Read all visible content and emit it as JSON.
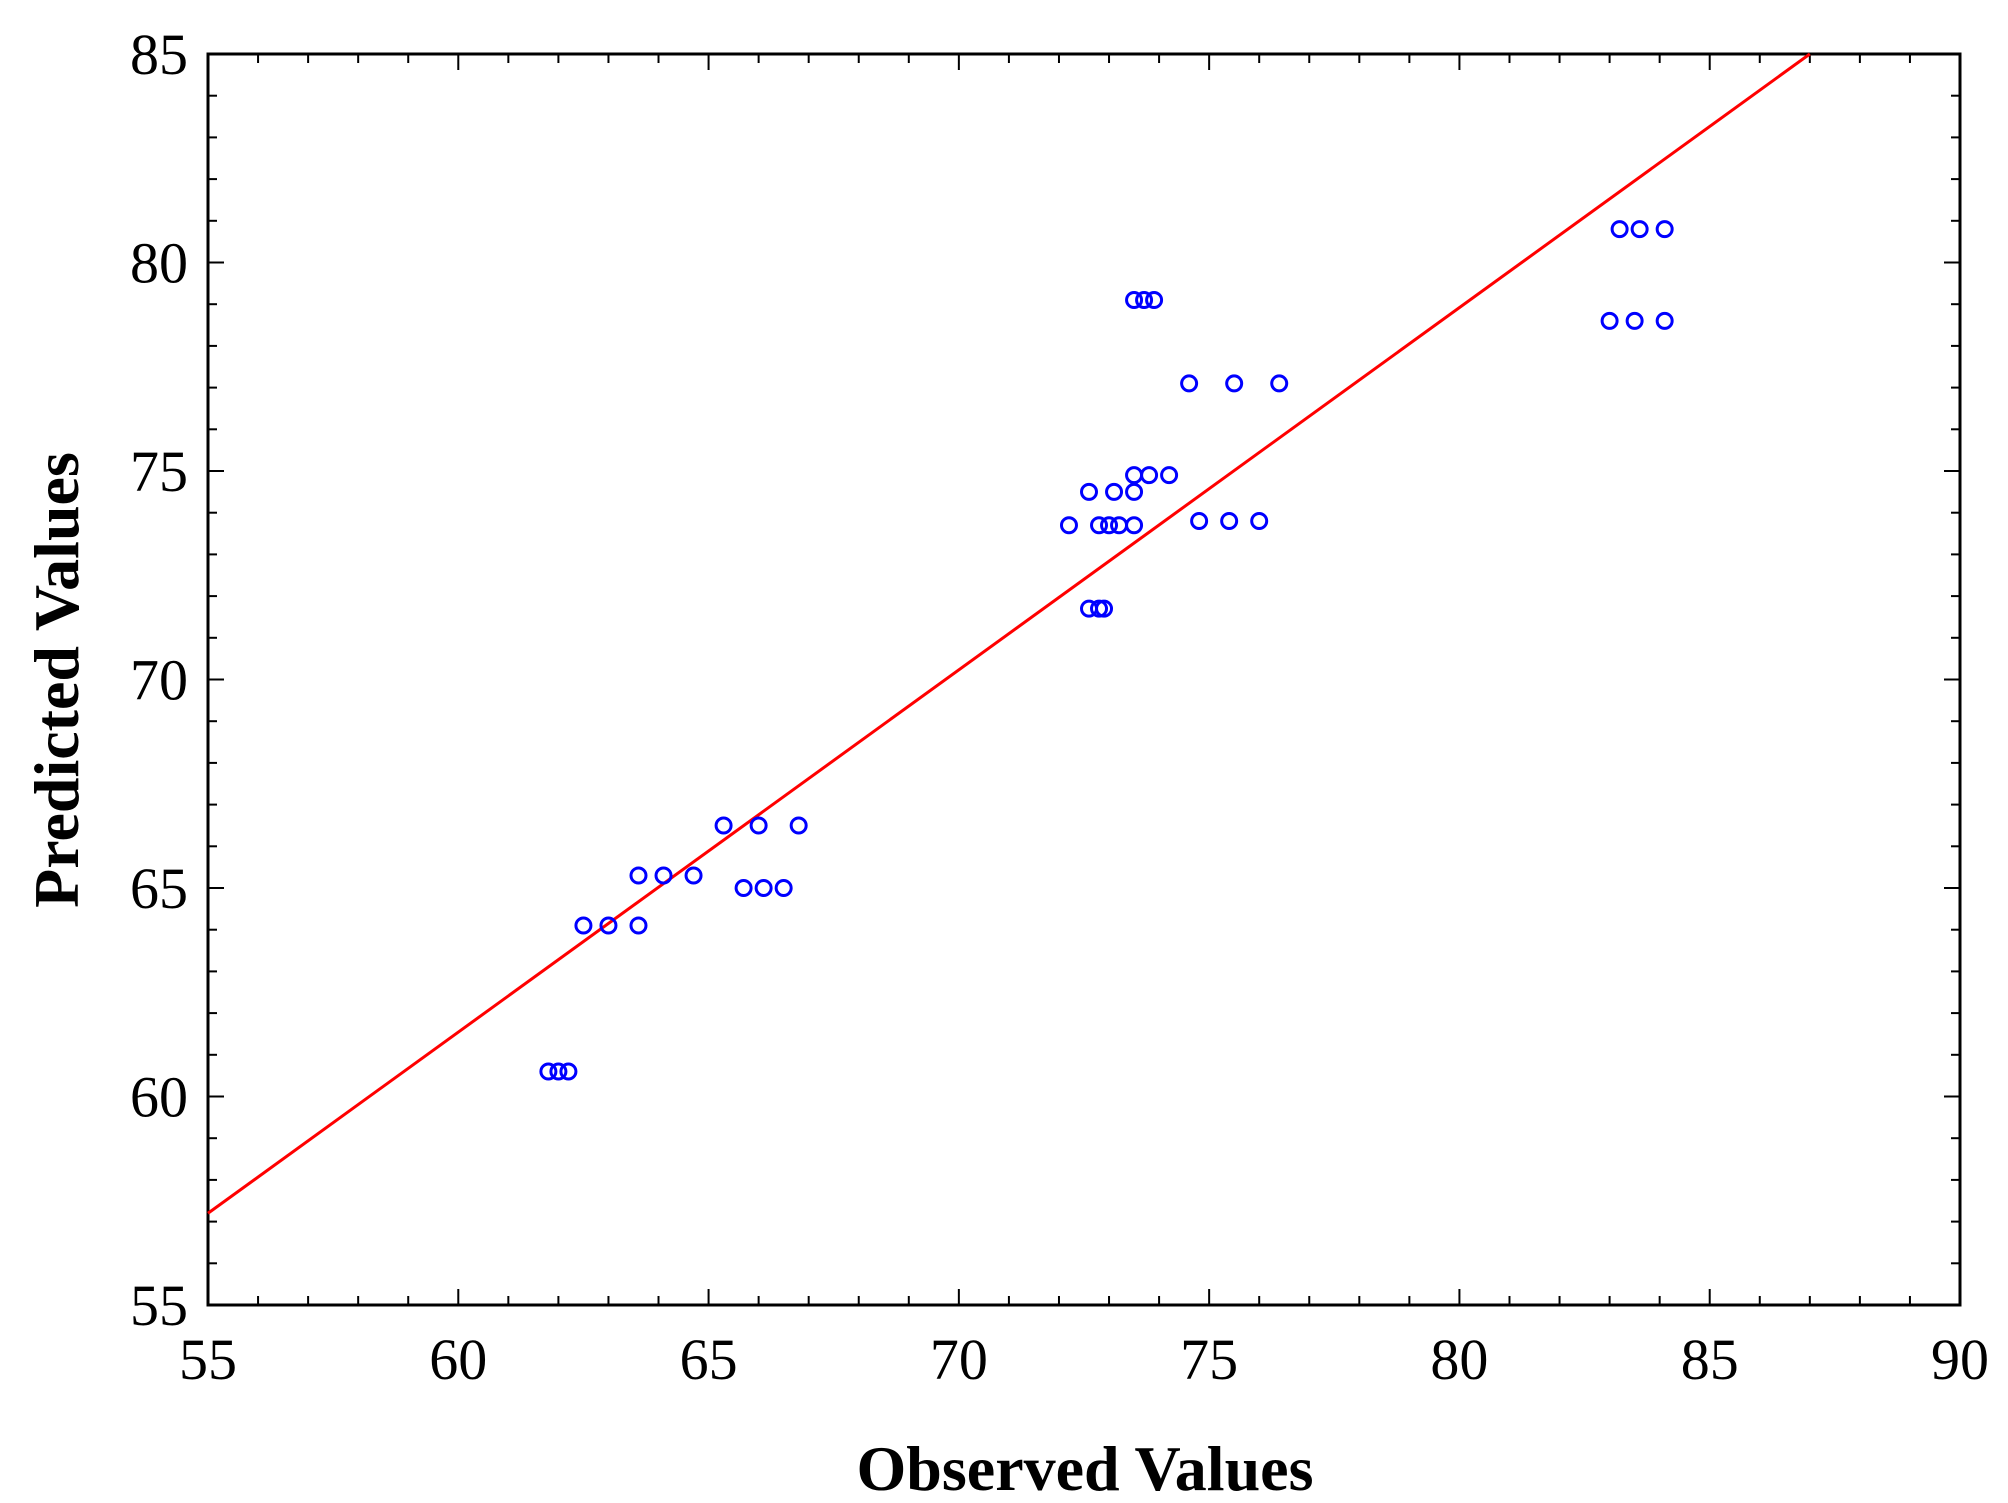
{
  "chart_data": {
    "type": "scatter",
    "title": "",
    "xlabel": "Observed Values",
    "ylabel": "Predicted Values",
    "xlim": [
      55,
      90
    ],
    "ylim": [
      55,
      85
    ],
    "x_ticks": [
      55,
      60,
      65,
      70,
      75,
      80,
      85,
      90
    ],
    "y_ticks": [
      55,
      60,
      65,
      70,
      75,
      80,
      85
    ],
    "x_tick_labels": [
      "55",
      "60",
      "65",
      "70",
      "75",
      "80",
      "85",
      "90"
    ],
    "y_tick_labels": [
      "55",
      "60",
      "65",
      "70",
      "75",
      "80",
      "85"
    ],
    "grid": false,
    "legend": "none",
    "colors": {
      "points": "#0000ff",
      "fit_line": "#ff0000",
      "frame": "#000000"
    },
    "points": {
      "marker": "open-circle",
      "x": [
        61.8,
        62.0,
        62.2,
        62.5,
        63.0,
        63.6,
        63.6,
        64.1,
        64.7,
        65.3,
        66.0,
        66.8,
        65.7,
        66.1,
        66.5,
        72.2,
        72.8,
        73.0,
        73.2,
        73.5,
        72.6,
        73.1,
        73.5,
        73.5,
        73.8,
        74.2,
        72.6,
        72.8,
        72.9,
        73.5,
        73.7,
        73.9,
        74.6,
        75.5,
        76.4,
        74.8,
        75.4,
        76.0,
        83.2,
        83.6,
        84.1,
        83.0,
        83.5,
        84.1
      ],
      "y": [
        60.6,
        60.6,
        60.6,
        64.1,
        64.1,
        64.1,
        65.3,
        65.3,
        65.3,
        66.5,
        66.5,
        66.5,
        65.0,
        65.0,
        65.0,
        73.7,
        73.7,
        73.7,
        73.7,
        73.7,
        74.5,
        74.5,
        74.5,
        74.9,
        74.9,
        74.9,
        71.7,
        71.7,
        71.7,
        79.1,
        79.1,
        79.1,
        77.1,
        77.1,
        77.1,
        73.8,
        73.8,
        73.8,
        80.8,
        80.8,
        80.8,
        78.6,
        78.6,
        78.6
      ]
    },
    "fit_line": {
      "x": [
        55,
        87.0
      ],
      "y": [
        57.2,
        85.0
      ]
    }
  }
}
